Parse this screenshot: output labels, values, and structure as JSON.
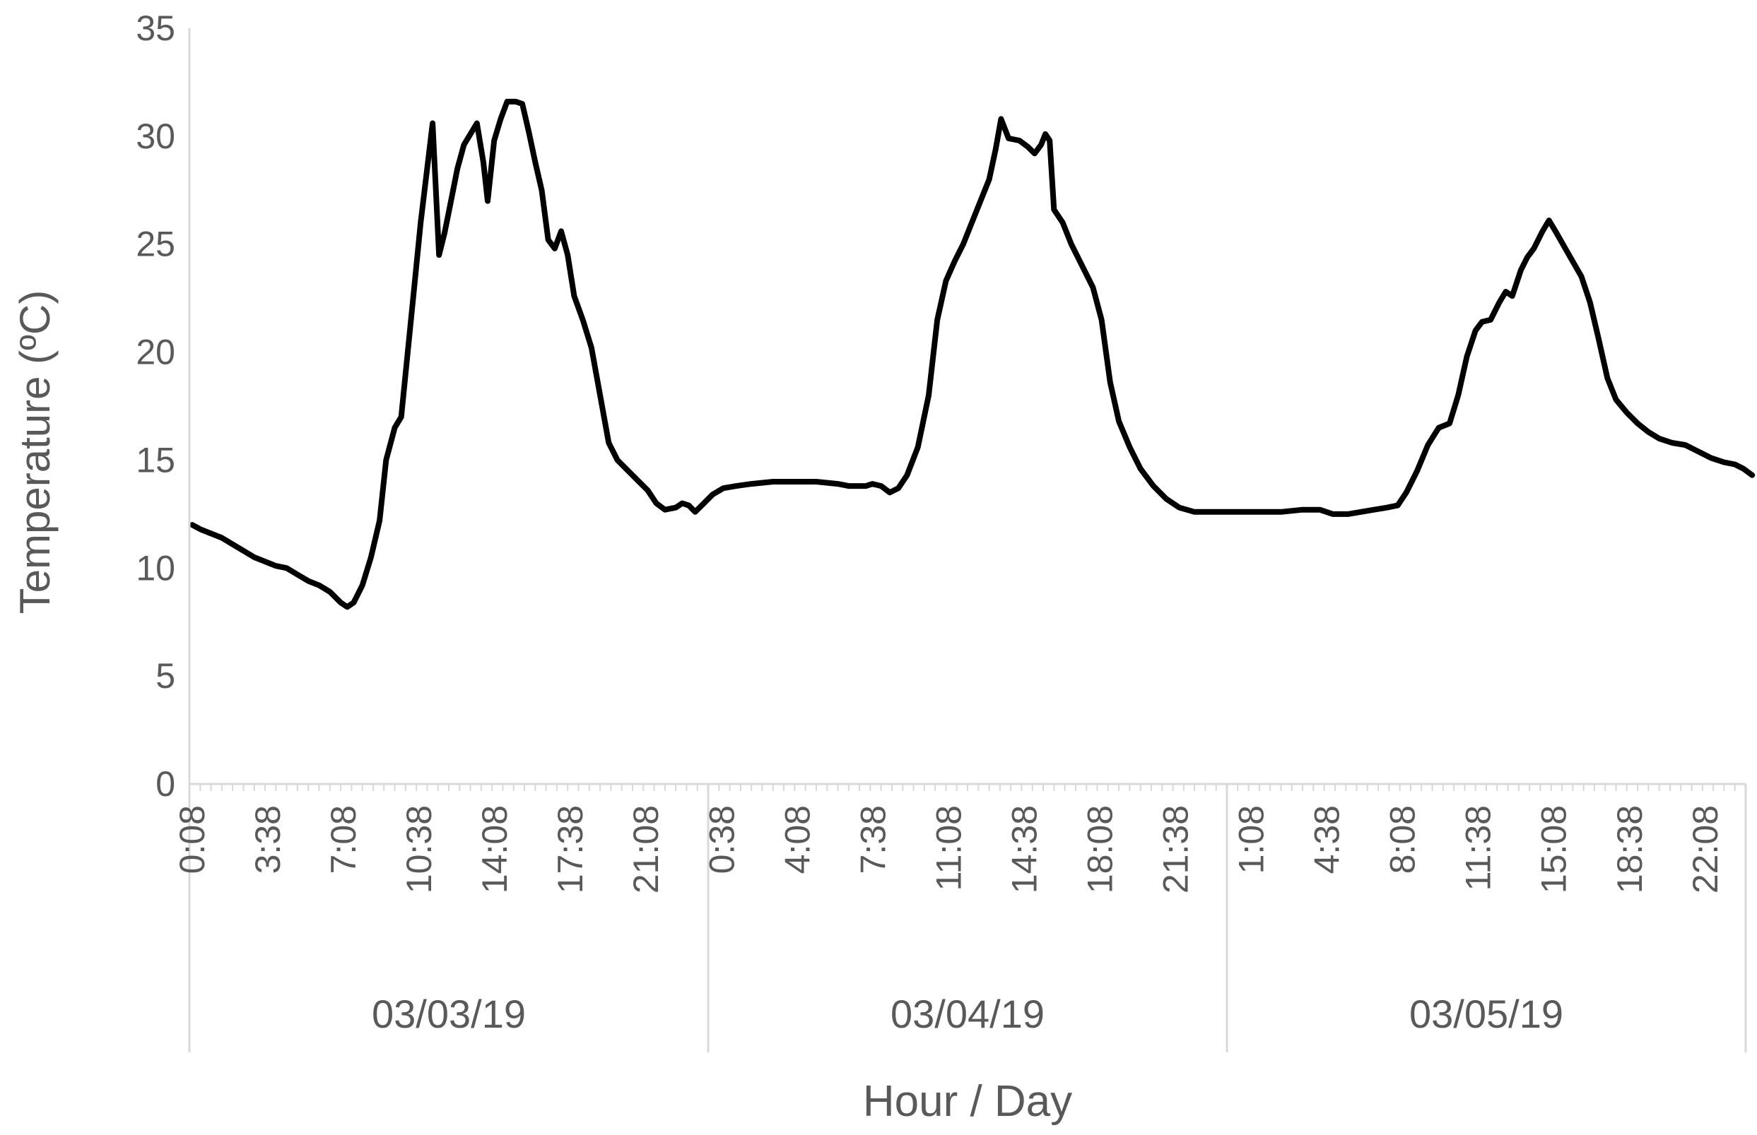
{
  "chart_data": {
    "type": "line",
    "title": "",
    "xlabel": "Hour / Day",
    "ylabel": "Temperature (ºC)",
    "ylim": [
      0,
      35
    ],
    "yticks": [
      0,
      5,
      10,
      15,
      20,
      25,
      30,
      35
    ],
    "grid": false,
    "legend": "none",
    "line_color": "#000000",
    "text_color": "#595959",
    "axis_color": "#d9d9d9",
    "x_unit": "hours since 03/03/19 0:00",
    "days": [
      "03/03/19",
      "03/04/19",
      "03/05/19"
    ],
    "time_labels": [
      {
        "label": "0:08",
        "h": 0.13
      },
      {
        "label": "3:38",
        "h": 3.63
      },
      {
        "label": "7:08",
        "h": 7.13
      },
      {
        "label": "10:38",
        "h": 10.63
      },
      {
        "label": "14:08",
        "h": 14.13
      },
      {
        "label": "17:38",
        "h": 17.63
      },
      {
        "label": "21:08",
        "h": 21.13
      },
      {
        "label": "0:38",
        "h": 24.63
      },
      {
        "label": "4:08",
        "h": 28.13
      },
      {
        "label": "7:38",
        "h": 31.63
      },
      {
        "label": "11:08",
        "h": 35.13
      },
      {
        "label": "14:38",
        "h": 38.63
      },
      {
        "label": "18:08",
        "h": 42.13
      },
      {
        "label": "21:38",
        "h": 45.63
      },
      {
        "label": "1:08",
        "h": 49.13
      },
      {
        "label": "4:38",
        "h": 52.63
      },
      {
        "label": "8:08",
        "h": 56.13
      },
      {
        "label": "11:38",
        "h": 59.63
      },
      {
        "label": "15:08",
        "h": 63.13
      },
      {
        "label": "18:38",
        "h": 66.63
      },
      {
        "label": "22:08",
        "h": 70.13
      }
    ],
    "series": [
      {
        "points": [
          [
            0.13,
            12.0
          ],
          [
            0.5,
            11.8
          ],
          [
            1.0,
            11.6
          ],
          [
            1.5,
            11.4
          ],
          [
            2.0,
            11.1
          ],
          [
            2.5,
            10.8
          ],
          [
            3.0,
            10.5
          ],
          [
            3.5,
            10.3
          ],
          [
            4.0,
            10.1
          ],
          [
            4.5,
            10.0
          ],
          [
            5.0,
            9.7
          ],
          [
            5.5,
            9.4
          ],
          [
            6.0,
            9.2
          ],
          [
            6.5,
            8.9
          ],
          [
            7.0,
            8.4
          ],
          [
            7.3,
            8.2
          ],
          [
            7.6,
            8.4
          ],
          [
            8.0,
            9.2
          ],
          [
            8.4,
            10.5
          ],
          [
            8.8,
            12.2
          ],
          [
            9.1,
            15.0
          ],
          [
            9.5,
            16.5
          ],
          [
            9.8,
            17.0
          ],
          [
            10.1,
            20.0
          ],
          [
            10.4,
            23.0
          ],
          [
            10.7,
            26.0
          ],
          [
            11.0,
            28.5
          ],
          [
            11.25,
            30.6
          ],
          [
            11.55,
            24.5
          ],
          [
            11.8,
            25.5
          ],
          [
            12.1,
            27.0
          ],
          [
            12.4,
            28.5
          ],
          [
            12.7,
            29.6
          ],
          [
            13.0,
            30.1
          ],
          [
            13.3,
            30.6
          ],
          [
            13.6,
            28.8
          ],
          [
            13.8,
            27.0
          ],
          [
            14.1,
            29.8
          ],
          [
            14.4,
            30.8
          ],
          [
            14.7,
            31.6
          ],
          [
            15.1,
            31.6
          ],
          [
            15.4,
            31.5
          ],
          [
            15.7,
            30.2
          ],
          [
            16.0,
            28.8
          ],
          [
            16.3,
            27.5
          ],
          [
            16.6,
            25.2
          ],
          [
            16.9,
            24.8
          ],
          [
            17.2,
            25.6
          ],
          [
            17.5,
            24.5
          ],
          [
            17.8,
            22.6
          ],
          [
            18.2,
            21.5
          ],
          [
            18.6,
            20.2
          ],
          [
            19.0,
            18.0
          ],
          [
            19.4,
            15.8
          ],
          [
            19.8,
            15.0
          ],
          [
            20.3,
            14.5
          ],
          [
            20.8,
            14.0
          ],
          [
            21.2,
            13.6
          ],
          [
            21.6,
            13.0
          ],
          [
            22.0,
            12.7
          ],
          [
            22.5,
            12.8
          ],
          [
            22.8,
            13.0
          ],
          [
            23.1,
            12.9
          ],
          [
            23.4,
            12.6
          ],
          [
            23.8,
            13.0
          ],
          [
            24.2,
            13.4
          ],
          [
            24.7,
            13.7
          ],
          [
            25.3,
            13.8
          ],
          [
            26.0,
            13.9
          ],
          [
            27.0,
            14.0
          ],
          [
            28.0,
            14.0
          ],
          [
            29.0,
            14.0
          ],
          [
            30.0,
            13.9
          ],
          [
            30.5,
            13.8
          ],
          [
            31.0,
            13.8
          ],
          [
            31.3,
            13.8
          ],
          [
            31.6,
            13.9
          ],
          [
            32.0,
            13.8
          ],
          [
            32.4,
            13.5
          ],
          [
            32.8,
            13.7
          ],
          [
            33.2,
            14.3
          ],
          [
            33.7,
            15.6
          ],
          [
            34.2,
            18.0
          ],
          [
            34.6,
            21.5
          ],
          [
            35.0,
            23.3
          ],
          [
            35.4,
            24.2
          ],
          [
            35.8,
            25.0
          ],
          [
            36.2,
            26.0
          ],
          [
            36.6,
            27.0
          ],
          [
            37.0,
            28.0
          ],
          [
            37.3,
            29.4
          ],
          [
            37.55,
            30.8
          ],
          [
            37.9,
            29.9
          ],
          [
            38.4,
            29.8
          ],
          [
            38.8,
            29.5
          ],
          [
            39.1,
            29.2
          ],
          [
            39.4,
            29.6
          ],
          [
            39.6,
            30.1
          ],
          [
            39.8,
            29.8
          ],
          [
            40.0,
            26.6
          ],
          [
            40.4,
            26.0
          ],
          [
            40.8,
            25.0
          ],
          [
            41.3,
            24.0
          ],
          [
            41.8,
            23.0
          ],
          [
            42.2,
            21.5
          ],
          [
            42.6,
            18.6
          ],
          [
            43.0,
            16.8
          ],
          [
            43.5,
            15.6
          ],
          [
            44.0,
            14.6
          ],
          [
            44.6,
            13.8
          ],
          [
            45.2,
            13.2
          ],
          [
            45.8,
            12.8
          ],
          [
            46.5,
            12.6
          ],
          [
            47.5,
            12.6
          ],
          [
            48.5,
            12.6
          ],
          [
            49.5,
            12.6
          ],
          [
            50.5,
            12.6
          ],
          [
            51.5,
            12.7
          ],
          [
            52.3,
            12.7
          ],
          [
            52.9,
            12.5
          ],
          [
            53.6,
            12.5
          ],
          [
            54.2,
            12.6
          ],
          [
            54.8,
            12.7
          ],
          [
            55.4,
            12.8
          ],
          [
            55.9,
            12.9
          ],
          [
            56.3,
            13.5
          ],
          [
            56.8,
            14.5
          ],
          [
            57.3,
            15.7
          ],
          [
            57.8,
            16.5
          ],
          [
            58.3,
            16.7
          ],
          [
            58.7,
            18.0
          ],
          [
            59.1,
            19.8
          ],
          [
            59.5,
            21.0
          ],
          [
            59.8,
            21.4
          ],
          [
            60.2,
            21.5
          ],
          [
            60.6,
            22.3
          ],
          [
            60.9,
            22.8
          ],
          [
            61.2,
            22.6
          ],
          [
            61.6,
            23.8
          ],
          [
            61.9,
            24.4
          ],
          [
            62.2,
            24.8
          ],
          [
            62.6,
            25.6
          ],
          [
            62.9,
            26.1
          ],
          [
            63.2,
            25.6
          ],
          [
            63.6,
            24.9
          ],
          [
            64.0,
            24.2
          ],
          [
            64.4,
            23.5
          ],
          [
            64.8,
            22.3
          ],
          [
            65.2,
            20.6
          ],
          [
            65.6,
            18.8
          ],
          [
            66.0,
            17.8
          ],
          [
            66.5,
            17.2
          ],
          [
            67.0,
            16.7
          ],
          [
            67.5,
            16.3
          ],
          [
            68.0,
            16.0
          ],
          [
            68.6,
            15.8
          ],
          [
            69.2,
            15.7
          ],
          [
            69.8,
            15.4
          ],
          [
            70.4,
            15.1
          ],
          [
            71.0,
            14.9
          ],
          [
            71.5,
            14.8
          ],
          [
            71.9,
            14.6
          ],
          [
            72.3,
            14.3
          ]
        ]
      }
    ]
  }
}
